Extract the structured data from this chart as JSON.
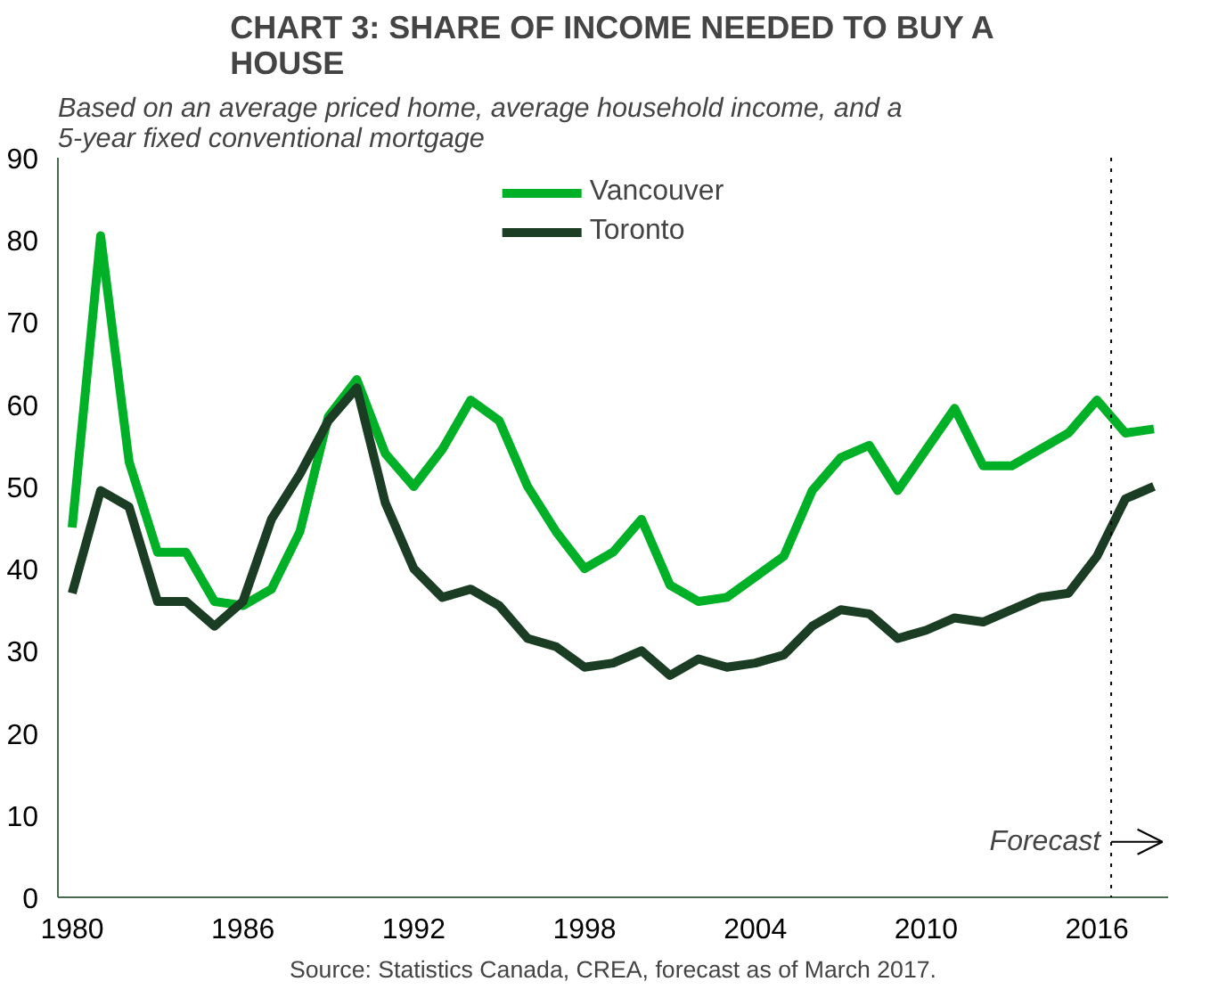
{
  "chart_data": {
    "type": "line",
    "title": "CHART 3: SHARE OF INCOME NEEDED TO BUY A HOUSE",
    "subtitle": "Based on an average priced home, average household income, and a 5-year fixed conventional mortgage",
    "x": [
      1980,
      1981,
      1982,
      1983,
      1984,
      1985,
      1986,
      1987,
      1988,
      1989,
      1990,
      1991,
      1992,
      1993,
      1994,
      1995,
      1996,
      1997,
      1998,
      1999,
      2000,
      2001,
      2002,
      2003,
      2004,
      2005,
      2006,
      2007,
      2008,
      2009,
      2010,
      2011,
      2012,
      2013,
      2014,
      2015,
      2016,
      2017,
      2018
    ],
    "series": [
      {
        "name": "Vancouver",
        "color": "#00b026",
        "values": [
          45,
          80.5,
          53,
          42,
          42,
          36,
          35.5,
          37.5,
          44.5,
          58.5,
          63,
          54,
          50,
          54.5,
          60.5,
          58,
          50,
          44.5,
          40,
          42,
          46,
          38,
          36,
          36.5,
          39,
          41.5,
          49.5,
          53.5,
          55,
          49.5,
          54.5,
          59.5,
          52.5,
          52.5,
          54.5,
          56.5,
          60.5,
          56.5,
          57
        ]
      },
      {
        "name": "Toronto",
        "color": "#1a3d24",
        "values": [
          37,
          49.5,
          47.5,
          36,
          36,
          33,
          36,
          46,
          51.5,
          58,
          62,
          48,
          40,
          36.5,
          37.5,
          35.5,
          31.5,
          30.5,
          28,
          28.5,
          30,
          27,
          29,
          28,
          28.5,
          29.5,
          33,
          35,
          34.5,
          31.5,
          32.5,
          34,
          33.5,
          35,
          36.5,
          37,
          41.5,
          48.5,
          50
        ]
      }
    ],
    "xlim": [
      1979.5,
      2018.5
    ],
    "xticks": [
      1980,
      1986,
      1992,
      1998,
      2004,
      2010,
      2016
    ],
    "ylim": [
      0,
      90
    ],
    "yticks": [
      0,
      10,
      20,
      30,
      40,
      50,
      60,
      70,
      80,
      90
    ],
    "ref_lines": [
      {
        "axis": "x",
        "value": 2016.5,
        "label": "Forecast",
        "line_style": "dotted",
        "color": "#000000"
      }
    ],
    "annotations": [
      "Source: Statistics Canada, CREA, forecast as of March 2017."
    ],
    "grid": false,
    "legend": "top",
    "marker": "none",
    "line_style": "solid"
  }
}
